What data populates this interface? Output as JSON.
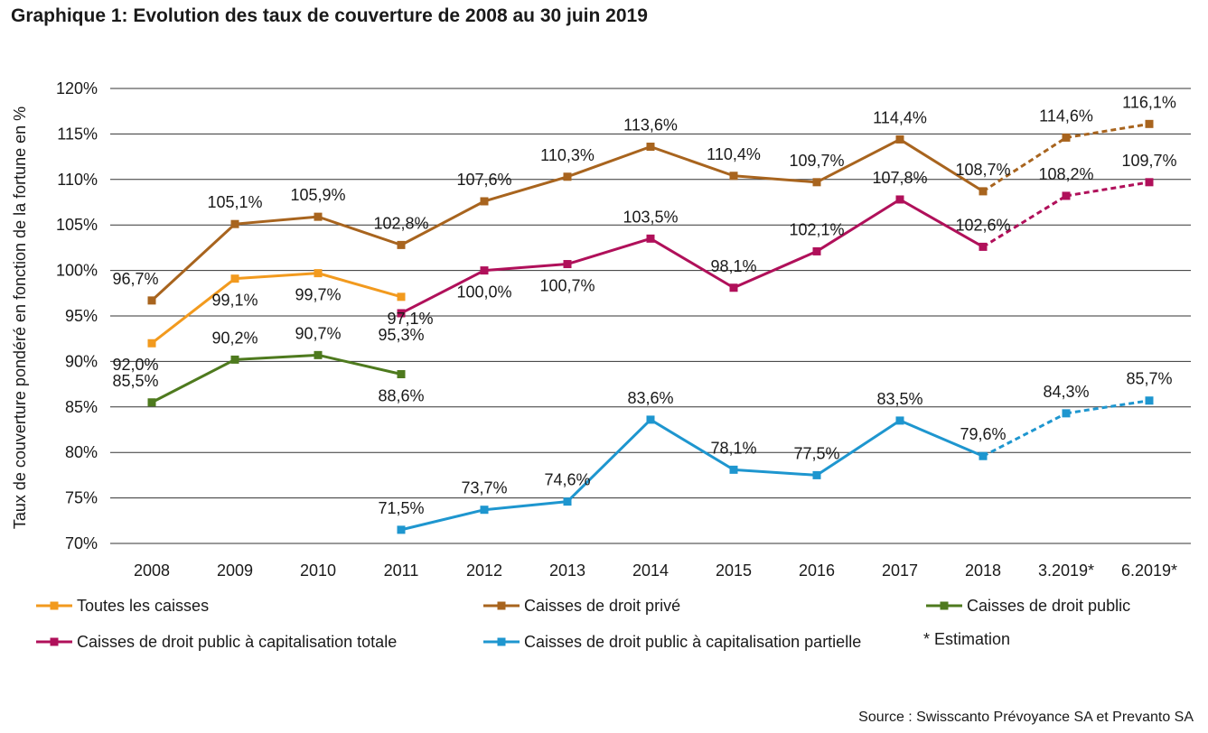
{
  "title": "Graphique 1: Evolution des taux de couverture de 2008 au 30 juin 2019",
  "source": "Source : Swisscanto Prévoyance SA et Prevanto SA",
  "note": "* Estimation",
  "chart_data": {
    "type": "line",
    "title": "Graphique 1: Evolution des taux de couverture de 2008 au 30 juin 2019",
    "ylabel": "Taux de couverture pondéré en fonction de la fortune en %",
    "xlabel": "",
    "ylim": [
      70,
      120
    ],
    "yticks": [
      70,
      75,
      80,
      85,
      90,
      95,
      100,
      105,
      110,
      115,
      120
    ],
    "ytick_labels": [
      "70%",
      "75%",
      "80%",
      "85%",
      "90%",
      "95%",
      "100%",
      "105%",
      "110%",
      "115%",
      "120%"
    ],
    "categories": [
      "2008",
      "2009",
      "2010",
      "2011",
      "2012",
      "2013",
      "2014",
      "2015",
      "2016",
      "2017",
      "2018",
      "3.2019*",
      "6.2019*"
    ],
    "grid": true,
    "legend_position": "bottom",
    "estimated_from_index": 10,
    "series": [
      {
        "name": "Toutes les caisses",
        "color": "#F29A1E",
        "values": [
          92.0,
          99.1,
          99.7,
          97.1,
          null,
          null,
          null,
          null,
          null,
          null,
          null,
          null,
          null
        ],
        "labels": [
          "92,0%",
          "99,1%",
          "99,7%",
          "97,1%",
          null,
          null,
          null,
          null,
          null,
          null,
          null,
          null,
          null
        ]
      },
      {
        "name": "Caisses de droit privé",
        "color": "#A8641E",
        "values": [
          96.7,
          105.1,
          105.9,
          102.8,
          107.6,
          110.3,
          113.6,
          110.4,
          109.7,
          114.4,
          108.7,
          114.6,
          116.1
        ],
        "labels": [
          "96,7%",
          "105,1%",
          "105,9%",
          "102,8%",
          "107,6%",
          "110,3%",
          "113,6%",
          "110,4%",
          "109,7%",
          "114,4%",
          "108,7%",
          "114,6%",
          "116,1%"
        ]
      },
      {
        "name": "Caisses de droit public",
        "color": "#4E7A1E",
        "values": [
          85.5,
          90.2,
          90.7,
          88.6,
          null,
          null,
          null,
          null,
          null,
          null,
          null,
          null,
          null
        ],
        "labels": [
          "85,5%",
          "90,2%",
          "90,7%",
          "88,6%",
          null,
          null,
          null,
          null,
          null,
          null,
          null,
          null,
          null
        ]
      },
      {
        "name": "Caisses de droit public à capitalisation totale",
        "color": "#B0105A",
        "values": [
          null,
          null,
          null,
          95.3,
          100.0,
          100.7,
          103.5,
          98.1,
          102.1,
          107.8,
          102.6,
          108.2,
          109.7
        ],
        "labels": [
          null,
          null,
          null,
          "95,3%",
          "100,0%",
          "100,7%",
          "103,5%",
          "98,1%",
          "102,1%",
          "107,8%",
          "102,6%",
          "108,2%",
          "109,7%"
        ]
      },
      {
        "name": "Caisses de droit public à capitalisation partielle",
        "color": "#1E96CF",
        "values": [
          null,
          null,
          null,
          71.5,
          73.7,
          74.6,
          83.6,
          78.1,
          77.5,
          83.5,
          79.6,
          84.3,
          85.7
        ],
        "labels": [
          null,
          null,
          null,
          "71,5%",
          "73,7%",
          "74,6%",
          "83,6%",
          "78,1%",
          "77,5%",
          "83,5%",
          "79,6%",
          "84,3%",
          "85,7%"
        ]
      }
    ]
  }
}
